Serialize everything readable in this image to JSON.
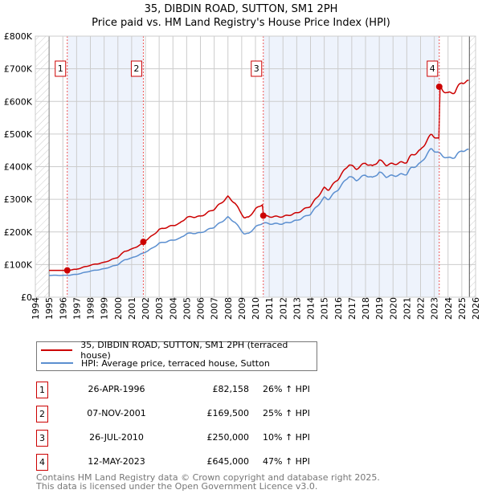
{
  "chart_data": {
    "type": "line",
    "title": "35, DIBDIN ROAD, SUTTON, SM1 2PH",
    "subtitle": "Price paid vs. HM Land Registry's House Price Index (HPI)",
    "xlim": [
      1994,
      2026
    ],
    "ylim": [
      0,
      800000
    ],
    "x_ticks": [
      "1994",
      "1995",
      "1996",
      "1997",
      "1998",
      "1999",
      "2000",
      "2001",
      "2002",
      "2003",
      "2004",
      "2005",
      "2006",
      "2007",
      "2008",
      "2009",
      "2010",
      "2011",
      "2012",
      "2013",
      "2014",
      "2015",
      "2016",
      "2017",
      "2018",
      "2019",
      "2020",
      "2021",
      "2022",
      "2023",
      "2024",
      "2025",
      "2026"
    ],
    "y_ticks": [
      "£0",
      "£100K",
      "£200K",
      "£300K",
      "£400K",
      "£500K",
      "£600K",
      "£700K",
      "£800K"
    ],
    "grid": true,
    "hpi_series": {
      "name": "HPI: Average price, terraced house, Sutton",
      "color": "#5b8fd0",
      "x": [
        1995,
        1996.3,
        1997,
        1998,
        1999,
        2000,
        2000.5,
        2001,
        2001.85,
        2002.5,
        2003,
        2004,
        2004.5,
        2005,
        2006,
        2007,
        2008,
        2008.5,
        2009.2,
        2009.5,
        2010,
        2010.55,
        2011,
        2012,
        2013,
        2014,
        2015,
        2015.3,
        2016,
        2016.8,
        2017.3,
        2018,
        2018.5,
        2019,
        2019.5,
        2020,
        2021,
        2021.3,
        2022,
        2022.5,
        2022.8,
        2023.36,
        2024,
        2024.5,
        2025,
        2025.5
      ],
      "y": [
        67000,
        67000,
        70000,
        80000,
        87000,
        100000,
        115000,
        120000,
        135000,
        150000,
        165000,
        175000,
        180000,
        195000,
        197000,
        215000,
        245000,
        230000,
        193000,
        195000,
        215000,
        228000,
        225000,
        225000,
        235000,
        255000,
        305000,
        300000,
        330000,
        372000,
        358000,
        375000,
        365000,
        383000,
        370000,
        372000,
        378000,
        395000,
        410000,
        440000,
        455000,
        440000,
        425000,
        430000,
        450000,
        450000
      ]
    },
    "property_series": {
      "name": "35, DIBDIN ROAD, SUTTON, SM1 2PH (terraced house)",
      "color": "#cc0000"
    },
    "sales": [
      {
        "id": "1",
        "x": 1996.32,
        "date": "26-APR-1996",
        "price_value": 82158,
        "price": "£82,158",
        "hpi": "26% ↑ HPI"
      },
      {
        "id": "2",
        "x": 2001.85,
        "date": "07-NOV-2001",
        "price_value": 169500,
        "price": "£169,500",
        "hpi": "25% ↑ HPI"
      },
      {
        "id": "3",
        "x": 2010.57,
        "date": "26-JUL-2010",
        "price_value": 250000,
        "price": "£250,000",
        "hpi": "10% ↑ HPI"
      },
      {
        "id": "4",
        "x": 2023.36,
        "date": "12-MAY-2023",
        "price_value": 645000,
        "price": "£645,000",
        "hpi": "47% ↑ HPI"
      }
    ],
    "data_start": 1995,
    "data_end": 2025.55
  },
  "footer": {
    "line1": "Contains HM Land Registry data © Crown copyright and database right 2025.",
    "line2": "This data is licensed under the Open Government Licence v3.0."
  }
}
